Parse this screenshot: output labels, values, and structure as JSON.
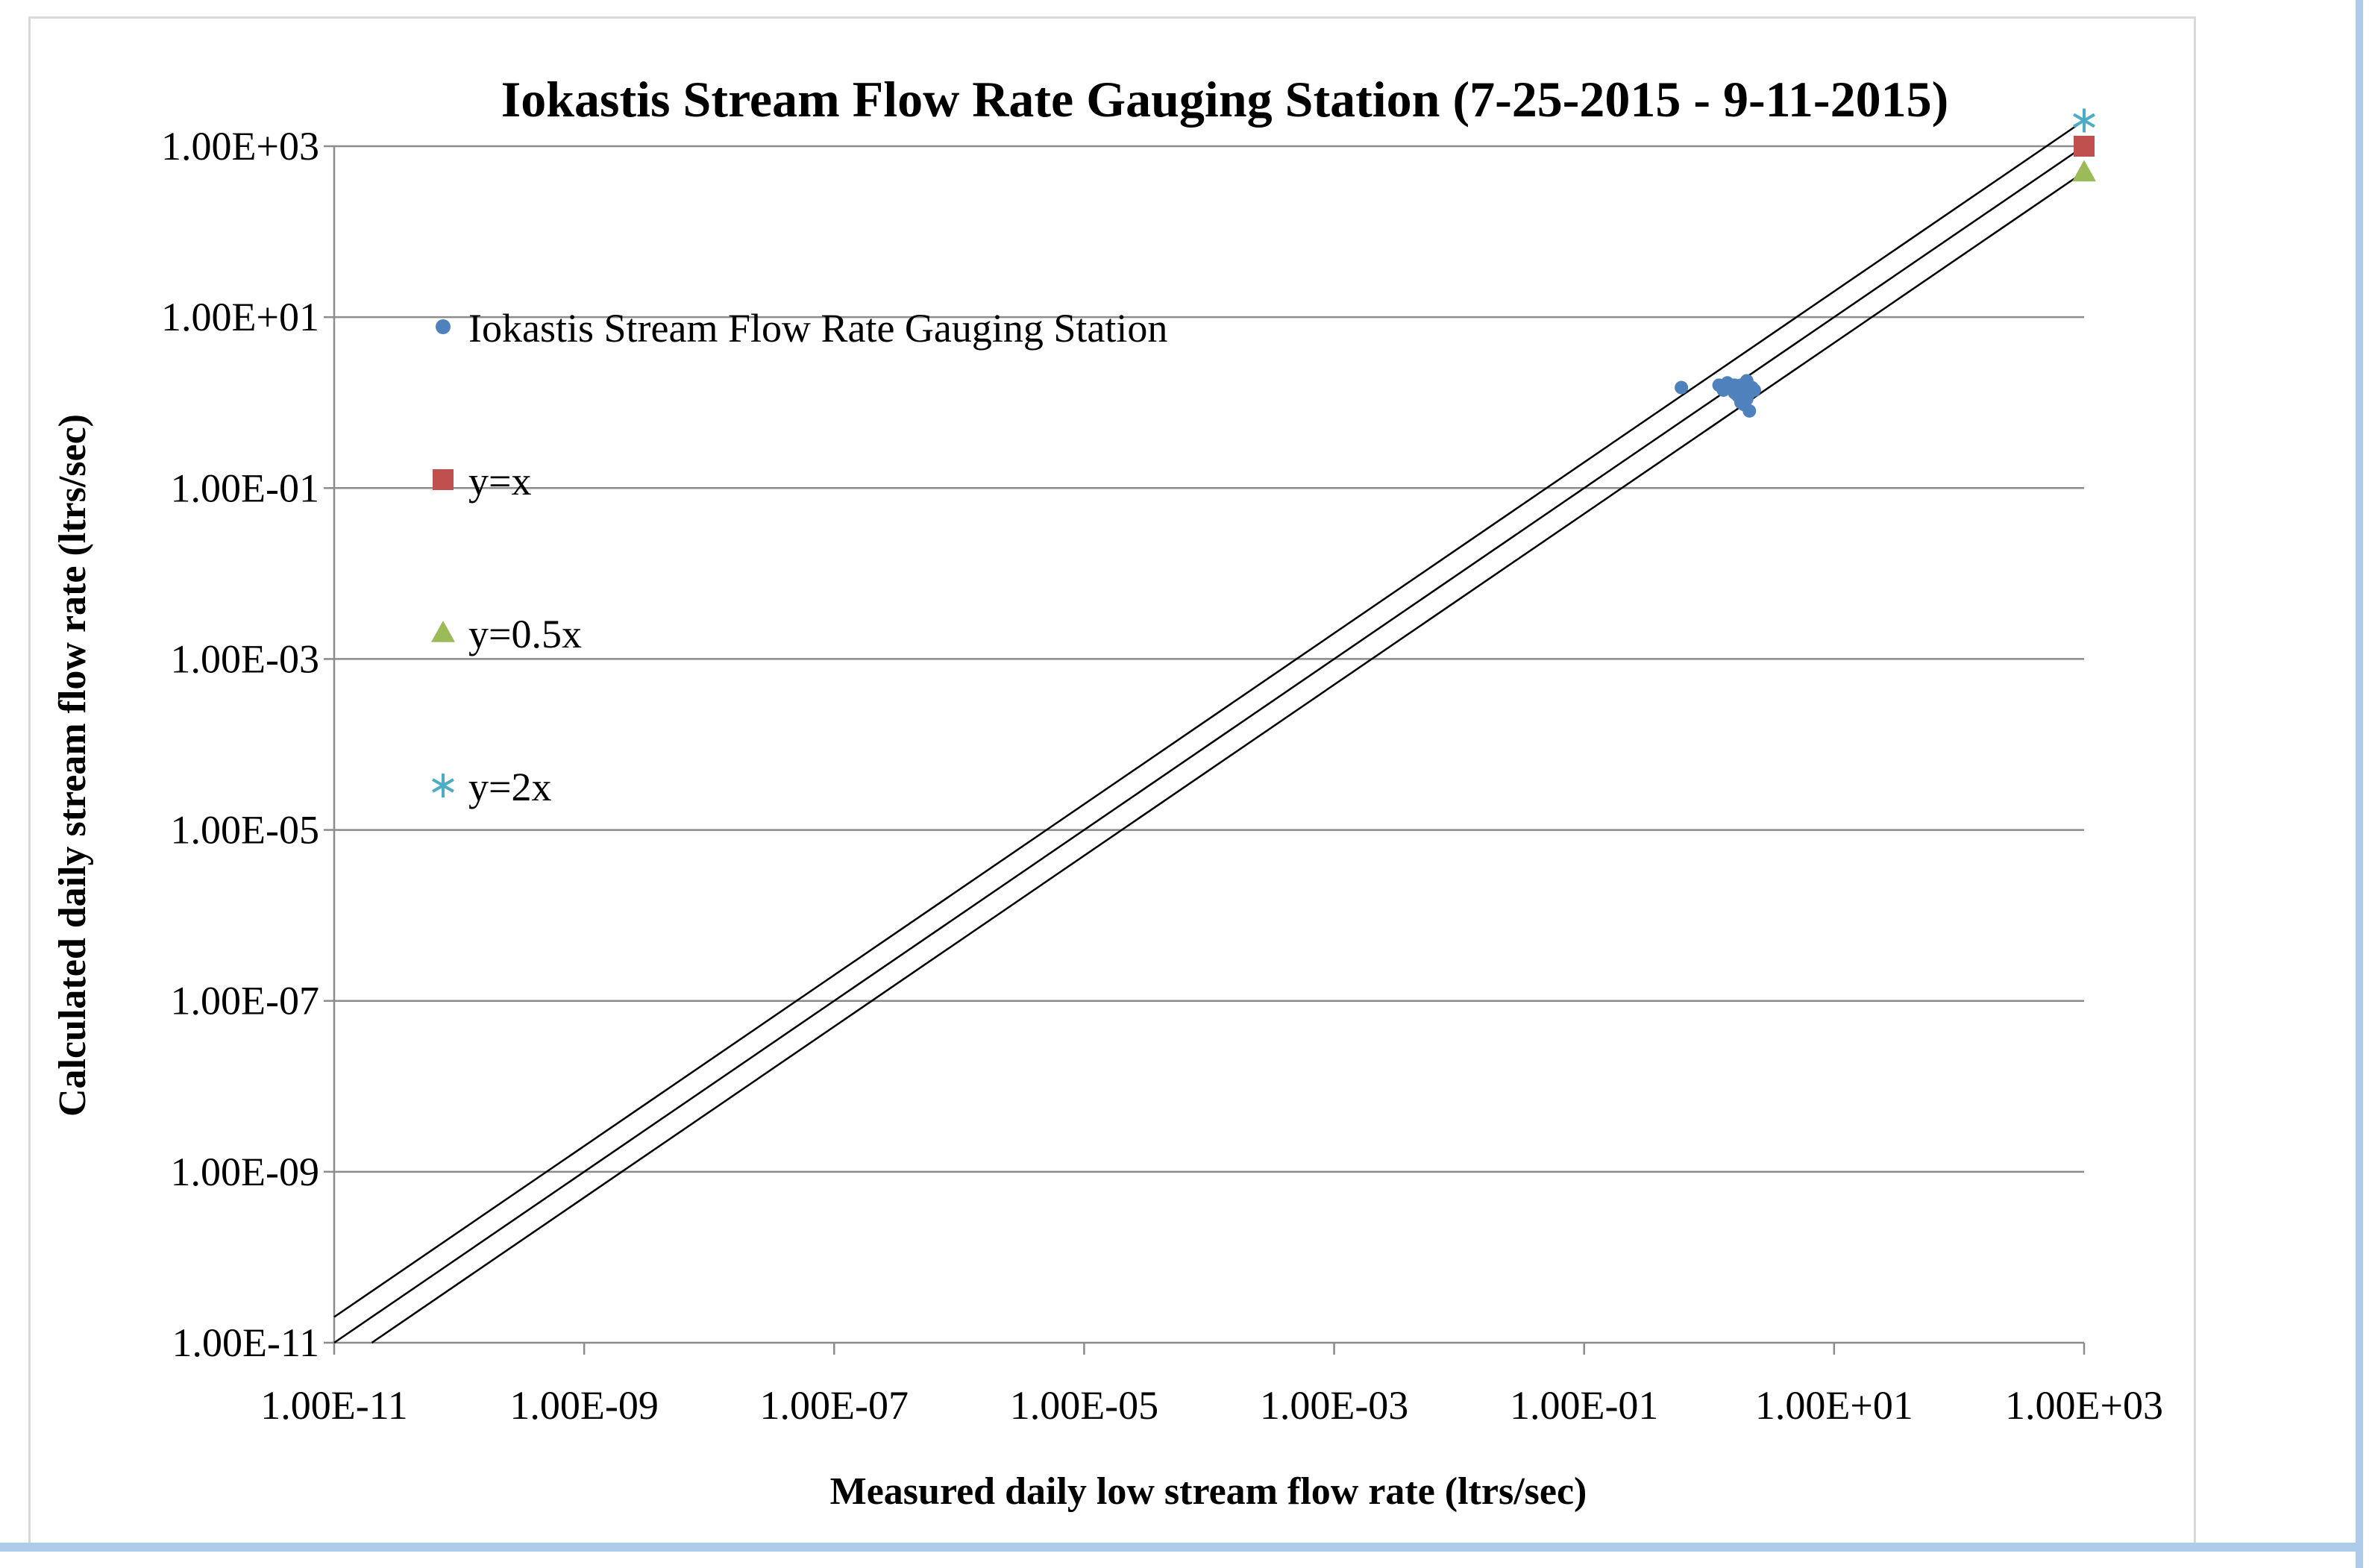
{
  "chart_data": {
    "type": "scatter",
    "title": "Iokastis Stream Flow Rate Gauging Station (7-25-2015 - 9-11-2015)",
    "xlabel": "Measured daily low stream flow rate (ltrs/sec)",
    "ylabel": "Calculated daily stream flow rate (ltrs/sec)",
    "xscale": "log",
    "yscale": "log",
    "xlim": [
      1e-11,
      1000
    ],
    "ylim": [
      1e-11,
      1000
    ],
    "x_ticks": [
      1e-11,
      1e-09,
      1e-07,
      1e-05,
      0.001,
      0.1,
      10,
      1000
    ],
    "x_tick_labels": [
      "1.00E-11",
      "1.00E-09",
      "1.00E-07",
      "1.00E-05",
      "1.00E-03",
      "1.00E-01",
      "1.00E+01",
      "1.00E+03"
    ],
    "y_ticks": [
      1e-11,
      1e-09,
      1e-07,
      1e-05,
      0.001,
      0.1,
      10,
      1000
    ],
    "y_tick_labels": [
      "1.00E-11",
      "1.00E-09",
      "1.00E-07",
      "1.00E-05",
      "1.00E-03",
      "1.00E-01",
      "1.00E+01",
      "1.00E+03"
    ],
    "grid": "horizontal",
    "legend_position": "upper-left",
    "series": [
      {
        "name": "Iokastis Stream Flow Rate Gauging Station",
        "marker": "circle",
        "color": "#4f81bd",
        "points": [
          [
            0.6,
            1.5
          ],
          [
            1.2,
            1.6
          ],
          [
            1.3,
            1.4
          ],
          [
            1.4,
            1.7
          ],
          [
            1.5,
            1.5
          ],
          [
            1.6,
            1.3
          ],
          [
            1.7,
            1.2
          ],
          [
            1.8,
            1.6
          ],
          [
            1.9,
            1.4
          ],
          [
            2.0,
            1.1
          ],
          [
            2.0,
            1.8
          ],
          [
            2.1,
            1.3
          ],
          [
            2.2,
            1.5
          ],
          [
            1.9,
            0.95
          ],
          [
            2.1,
            0.8
          ],
          [
            1.6,
            1.6
          ],
          [
            1.8,
            1.0
          ],
          [
            2.3,
            1.4
          ]
        ]
      },
      {
        "name": "y=x",
        "marker": "square",
        "color": "#c0504d",
        "points": [
          [
            1000,
            1000
          ]
        ]
      },
      {
        "name": "y=0.5x",
        "marker": "triangle",
        "color": "#9bbb59",
        "points": [
          [
            1000,
            500
          ]
        ]
      },
      {
        "name": "y=2x",
        "marker": "star",
        "color": "#4bacc6",
        "points": [
          [
            1000,
            2000
          ]
        ]
      }
    ],
    "reference_lines": [
      {
        "name": "y=x",
        "factor": 1
      },
      {
        "name": "y=0.5x",
        "factor": 0.5
      },
      {
        "name": "y=2x",
        "factor": 2
      }
    ]
  }
}
